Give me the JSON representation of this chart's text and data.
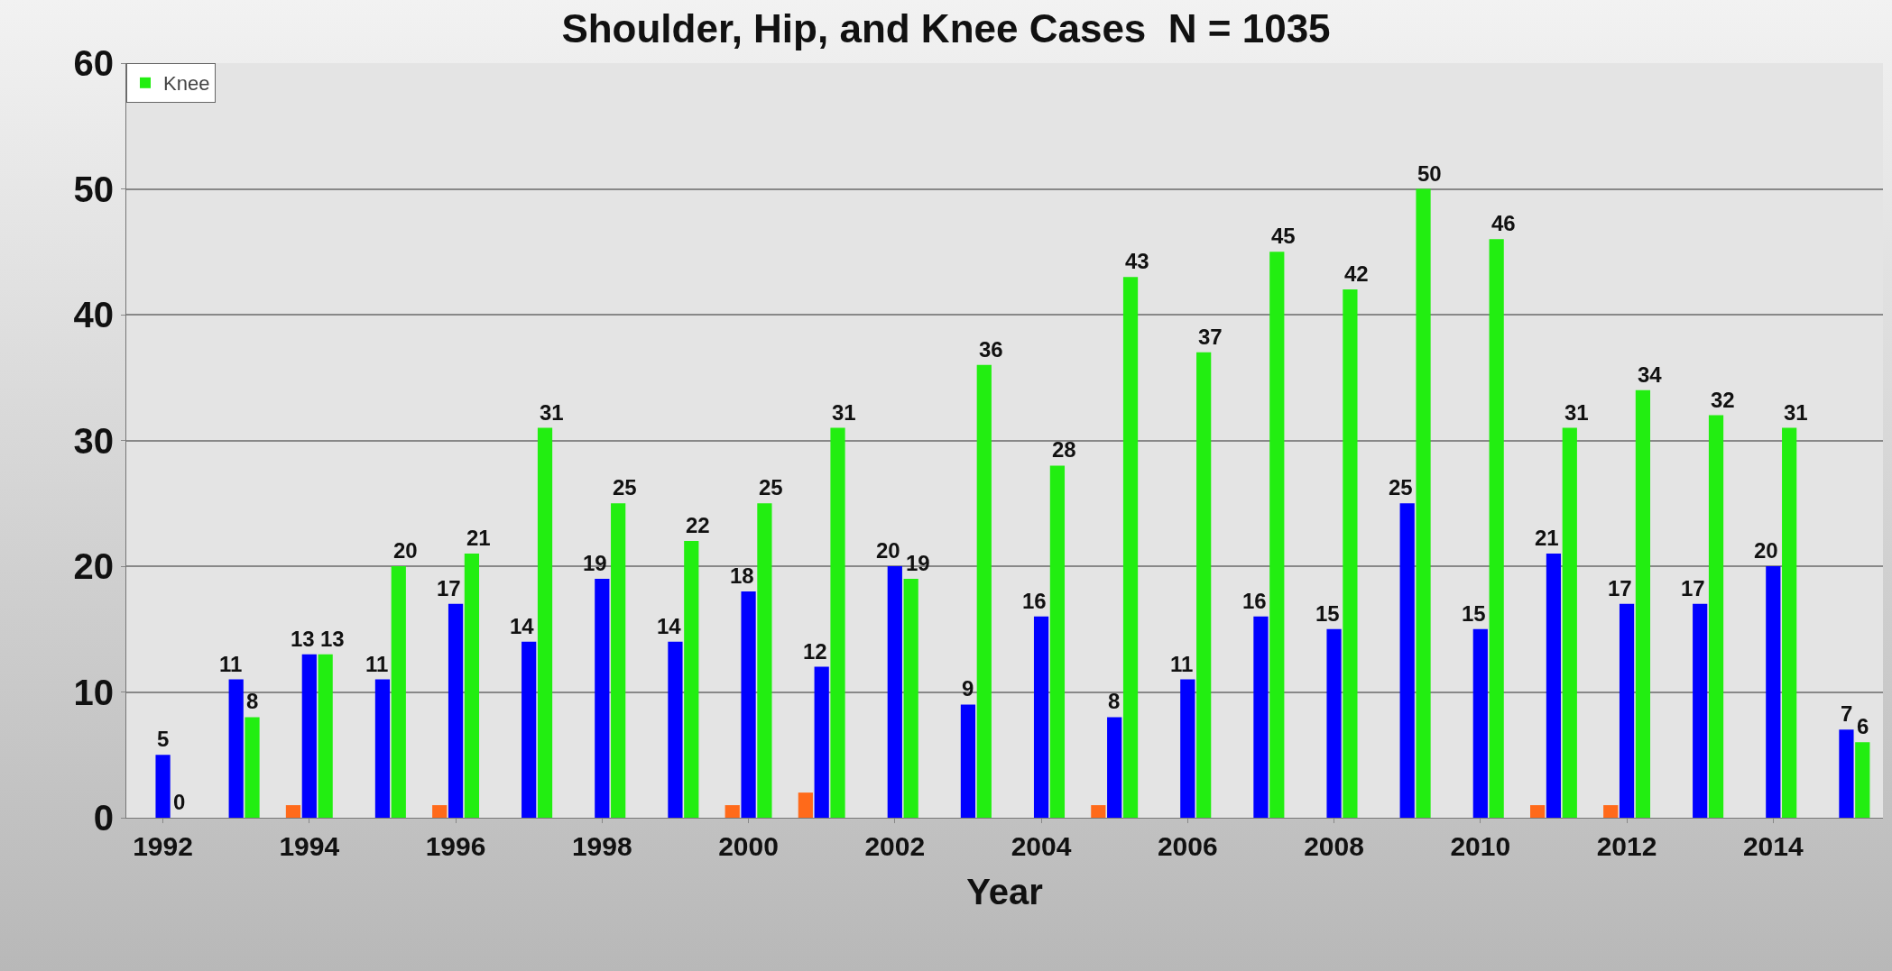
{
  "chart_data": {
    "type": "bar",
    "title": "Shoulder, Hip, and Knee Cases  N = 1035",
    "xlabel": "Year",
    "x": [
      1992,
      1993,
      1994,
      1995,
      1996,
      1997,
      1998,
      1999,
      2000,
      2001,
      2002,
      2003,
      2004,
      2005,
      2006,
      2007,
      2008,
      2009,
      2010,
      2011,
      2012,
      2013,
      2014,
      2015
    ],
    "series": [
      {
        "color": "#ff6a1a",
        "values": [
          0,
          0,
          1,
          0,
          1,
          0,
          0,
          0,
          1,
          2,
          0,
          0,
          0,
          1,
          0,
          0,
          0,
          0,
          0,
          1,
          1,
          0,
          0,
          0
        ]
      },
      {
        "color": "#0000ff",
        "values": [
          5,
          11,
          13,
          11,
          17,
          14,
          19,
          14,
          18,
          12,
          20,
          9,
          16,
          8,
          11,
          16,
          15,
          25,
          15,
          21,
          17,
          17,
          20,
          7
        ],
        "value_labels": [
          "5",
          "11",
          "13",
          "11",
          "17",
          "14",
          "19",
          "14",
          "18",
          "12",
          "20",
          "9",
          "16",
          "8",
          "11",
          "16",
          "15",
          "25",
          "15",
          "21",
          "17",
          "17",
          "20",
          "7"
        ]
      },
      {
        "name": "Knee",
        "color": "#22ee11",
        "values": [
          0,
          8,
          13,
          20,
          21,
          31,
          25,
          22,
          25,
          31,
          19,
          36,
          28,
          43,
          37,
          45,
          42,
          50,
          46,
          31,
          34,
          32,
          31,
          6
        ],
        "value_labels": [
          "0",
          "8",
          "13",
          "20",
          "21",
          "31",
          "25",
          "22",
          "25",
          "31",
          "19",
          "36",
          "28",
          "43",
          "37",
          "45",
          "42",
          "50",
          "46",
          "31",
          "34",
          "32",
          "31",
          "6"
        ]
      }
    ],
    "xlim": [
      1991.5,
      2015.5
    ],
    "xticks": [
      1992,
      1994,
      1996,
      1998,
      2000,
      2002,
      2004,
      2006,
      2008,
      2010,
      2012,
      2014
    ],
    "ylim": [
      0,
      60
    ],
    "yticks": [
      0,
      10,
      20,
      30,
      40,
      50,
      60
    ],
    "grid": "y",
    "legend": "top left"
  }
}
